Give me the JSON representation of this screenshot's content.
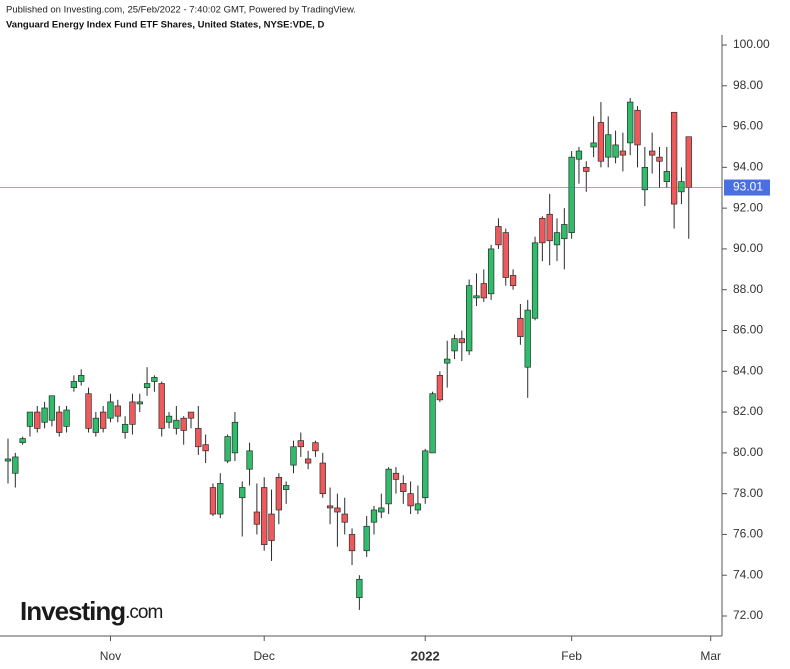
{
  "header": {
    "published": "Published on Investing.com, 25/Feb/2022 - 7:40:02 GMT, Powered by TradingView.",
    "subtitle": "Vanguard Energy Index Fund ETF Shares, United States, NYSE:VDE, D"
  },
  "watermark": {
    "brand": "Investing",
    "domain": ".com"
  },
  "chart_data": {
    "type": "candlestick",
    "categories": [
      null,
      null,
      null,
      null,
      null,
      null,
      null,
      null,
      null,
      null,
      null,
      null,
      null,
      null,
      "Nov",
      null,
      null,
      null,
      null,
      null,
      null,
      null,
      null,
      null,
      null,
      null,
      null,
      null,
      null,
      null,
      null,
      null,
      null,
      null,
      null,
      "Dec",
      null,
      null,
      null,
      null,
      null,
      null,
      null,
      null,
      null,
      null,
      null,
      null,
      null,
      null,
      null,
      null,
      null,
      null,
      null,
      null,
      null,
      "2022",
      null,
      null,
      null,
      null,
      null,
      null,
      null,
      null,
      null,
      null,
      null,
      null,
      null,
      null,
      null,
      null,
      null,
      null,
      null,
      "Feb",
      null,
      null,
      null,
      null,
      null,
      null,
      null,
      null,
      null,
      null,
      null,
      null,
      null,
      null,
      null,
      null,
      null,
      null,
      "Mar"
    ],
    "open": [
      79.6,
      79.0,
      80.5,
      81.3,
      82.0,
      81.5,
      81.6,
      82.0,
      81.3,
      83.2,
      83.5,
      82.9,
      81.0,
      82.0,
      81.7,
      82.3,
      81.0,
      82.5,
      82.4,
      83.2,
      83.5,
      83.4,
      81.5,
      81.2,
      81.7,
      82.0,
      81.2,
      80.4,
      78.3,
      77.0,
      79.6,
      80.0,
      77.8,
      79.2,
      77.1,
      78.3,
      77.0,
      78.8,
      78.2,
      79.4,
      80.6,
      79.7,
      80.5,
      79.5,
      77.4,
      77.3,
      77.0,
      76.0,
      72.9,
      75.2,
      76.6,
      77.1,
      77.5,
      79.0,
      78.5,
      78.0,
      77.2,
      77.8,
      80.0,
      83.8,
      84.4,
      85.0,
      85.6,
      85.0,
      87.6,
      88.3,
      87.8,
      91.1,
      90.8,
      88.7,
      86.6,
      84.2,
      86.6,
      91.5,
      91.7,
      90.2,
      90.5,
      90.8,
      94.4,
      94.0,
      95.0,
      96.2,
      94.5,
      94.5,
      94.8,
      95.2,
      96.8,
      92.9,
      94.8,
      94.5,
      93.3,
      96.7,
      92.8,
      95.5,
      null,
      null,
      null
    ],
    "high": [
      80.7,
      80.0,
      80.8,
      82.0,
      82.3,
      82.5,
      82.8,
      82.3,
      82.3,
      83.8,
      84.1,
      83.2,
      82.0,
      82.3,
      82.9,
      82.6,
      81.8,
      82.9,
      82.9,
      84.2,
      83.8,
      83.5,
      82.0,
      82.3,
      81.8,
      82.0,
      82.3,
      80.9,
      78.5,
      79.0,
      80.9,
      82.0,
      78.6,
      80.5,
      78.5,
      78.8,
      78.2,
      79.0,
      78.6,
      80.6,
      81.0,
      80.1,
      80.6,
      80.0,
      78.3,
      78.0,
      77.8,
      76.3,
      74.0,
      76.9,
      77.4,
      78.0,
      79.3,
      79.3,
      78.9,
      78.6,
      78.4,
      80.2,
      83.0,
      84.0,
      85.5,
      85.8,
      86.0,
      88.5,
      88.8,
      89.0,
      90.2,
      91.5,
      91.0,
      89.0,
      87.3,
      87.5,
      90.6,
      91.6,
      92.7,
      91.5,
      92.0,
      94.8,
      95.0,
      94.3,
      96.5,
      97.2,
      96.5,
      95.8,
      95.7,
      97.4,
      97.0,
      95.0,
      95.7,
      95.0,
      95.0,
      96.7,
      94.0,
      95.5,
      null,
      null,
      null
    ],
    "low": [
      78.5,
      78.3,
      80.4,
      80.8,
      81.0,
      81.2,
      81.3,
      80.8,
      81.0,
      83.0,
      83.3,
      81.0,
      80.8,
      81.0,
      81.5,
      81.5,
      80.7,
      80.9,
      82.0,
      82.8,
      83.0,
      80.8,
      81.2,
      80.9,
      80.4,
      81.2,
      79.9,
      79.5,
      76.9,
      76.8,
      79.5,
      79.6,
      75.9,
      78.4,
      76.0,
      75.2,
      74.7,
      76.5,
      77.5,
      79.0,
      79.8,
      79.2,
      79.8,
      77.8,
      76.5,
      75.4,
      76.0,
      74.5,
      72.3,
      74.9,
      76.0,
      76.8,
      77.0,
      78.0,
      77.5,
      77.0,
      77.0,
      77.5,
      80.0,
      82.5,
      83.2,
      84.6,
      84.5,
      84.8,
      87.2,
      87.4,
      87.5,
      90.0,
      88.2,
      88.0,
      85.3,
      82.7,
      86.5,
      89.4,
      89.2,
      89.4,
      89.0,
      90.5,
      93.2,
      92.8,
      94.5,
      94.0,
      94.0,
      94.2,
      93.8,
      94.6,
      94.0,
      92.1,
      93.7,
      93.0,
      93.0,
      91.0,
      92.2,
      90.5,
      null,
      null,
      null
    ],
    "close": [
      79.7,
      79.8,
      80.7,
      82.0,
      81.2,
      82.2,
      82.8,
      81.0,
      82.1,
      83.5,
      83.8,
      81.2,
      81.7,
      81.2,
      82.5,
      81.8,
      81.4,
      81.4,
      82.5,
      83.4,
      83.7,
      81.2,
      81.8,
      81.6,
      81.1,
      81.7,
      80.3,
      80.1,
      77.0,
      78.5,
      80.8,
      81.5,
      78.3,
      80.1,
      76.5,
      75.5,
      75.7,
      77.2,
      78.4,
      80.3,
      80.3,
      79.5,
      80.1,
      78.0,
      77.3,
      77.1,
      76.6,
      75.2,
      73.8,
      76.4,
      77.2,
      77.3,
      79.2,
      78.7,
      78.1,
      77.4,
      77.5,
      80.1,
      82.9,
      82.6,
      84.6,
      85.6,
      85.4,
      88.2,
      87.7,
      87.6,
      90.0,
      90.2,
      88.6,
      88.2,
      85.7,
      87.0,
      90.3,
      90.3,
      90.4,
      90.8,
      91.2,
      94.5,
      94.8,
      93.8,
      95.2,
      94.3,
      95.6,
      95.1,
      94.6,
      97.2,
      95.1,
      94.0,
      94.6,
      94.3,
      93.8,
      92.2,
      93.3,
      93.01,
      null,
      null,
      null
    ],
    "up_color": "#2fbd6c",
    "down_color": "#ee5a5c",
    "outline_color": "#2b2b2b",
    "last_price": 93.01,
    "last_price_color": "#4a6fe3",
    "ylim": [
      71.02,
      100.49
    ],
    "yticks": [
      {
        "value": 72,
        "label": "72.00"
      },
      {
        "value": 74,
        "label": "74.00"
      },
      {
        "value": 76,
        "label": "76.00"
      },
      {
        "value": 78,
        "label": "78.00"
      },
      {
        "value": 80,
        "label": "80.00"
      },
      {
        "value": 82,
        "label": "82.00"
      },
      {
        "value": 84,
        "label": "84.00"
      },
      {
        "value": 86,
        "label": "86.00"
      },
      {
        "value": 88,
        "label": "88.00"
      },
      {
        "value": 90,
        "label": "90.00"
      },
      {
        "value": 92,
        "label": "92.00"
      },
      {
        "value": 94,
        "label": "94.00"
      },
      {
        "value": 96,
        "label": "96.00"
      },
      {
        "value": 98,
        "label": "98.00"
      },
      {
        "value": {
          "v": 100
        },
        "label": "100.00"
      }
    ],
    "grid": false
  }
}
